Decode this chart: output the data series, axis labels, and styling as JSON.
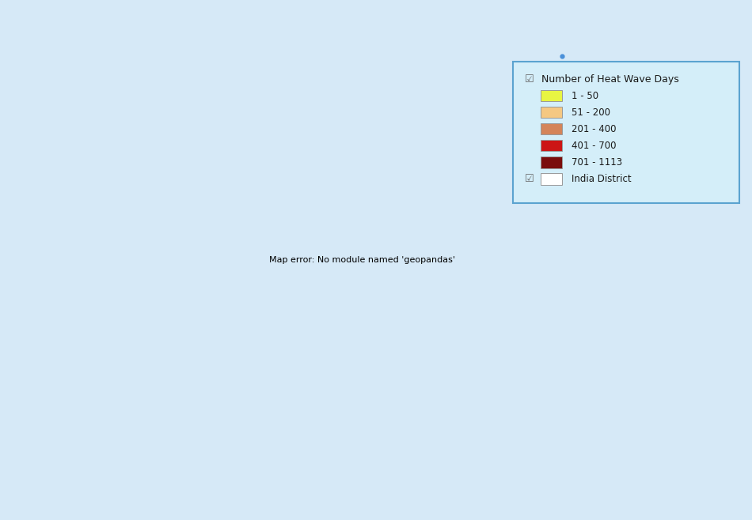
{
  "background_color": "#d6e9f7",
  "legend_title": "Number of Heat Wave Days",
  "legend_items": [
    {
      "label": "1 - 50",
      "color": "#e8f542"
    },
    {
      "label": "51 - 200",
      "color": "#f5c882"
    },
    {
      "label": "201 - 400",
      "color": "#d4845a"
    },
    {
      "label": "401 - 700",
      "color": "#cc1515"
    },
    {
      "label": "701 - 1113",
      "color": "#7a0c0c"
    }
  ],
  "legend_district_label": "India District",
  "legend_district_color": "#ffffff",
  "legend_box_facecolor": "#d4eef9",
  "legend_box_edgecolor": "#5ba3d0",
  "district_edge_color": "#1a1a1a",
  "district_edge_linewidth": 0.25,
  "figsize": [
    9.5,
    6.58
  ],
  "dpi": 100,
  "xlim": [
    66.0,
    98.5
  ],
  "ylim": [
    5.5,
    38.5
  ],
  "dot_color": "#4a90d9",
  "kashmir_color": "#ffffff",
  "kashmir_edge": "#333333"
}
